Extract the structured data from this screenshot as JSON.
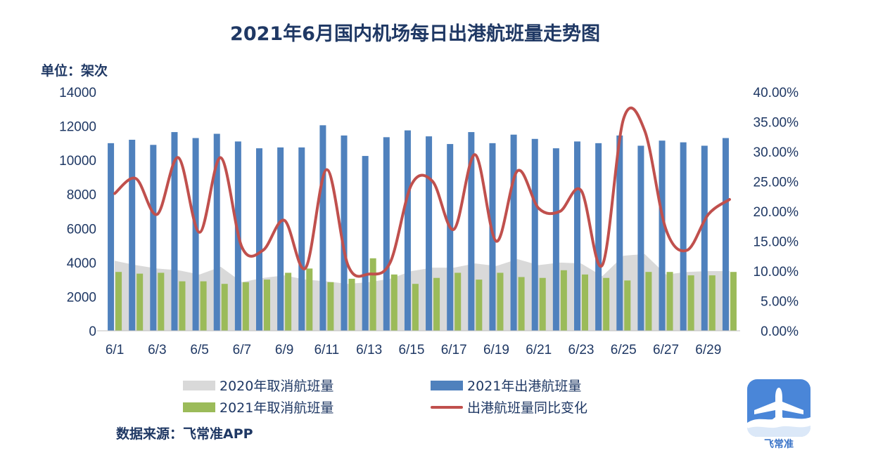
{
  "chart_data": {
    "type": "bar",
    "title": "2021年6月国内机场每日出港航班量走势图",
    "unit_label": "单位：架次",
    "categories": [
      "6/1",
      "6/2",
      "6/3",
      "6/4",
      "6/5",
      "6/6",
      "6/7",
      "6/8",
      "6/9",
      "6/10",
      "6/11",
      "6/12",
      "6/13",
      "6/14",
      "6/15",
      "6/16",
      "6/17",
      "6/18",
      "6/19",
      "6/20",
      "6/21",
      "6/22",
      "6/23",
      "6/24",
      "6/25",
      "6/26",
      "6/27",
      "6/28",
      "6/29",
      "6/30"
    ],
    "x_tick_labels": [
      "6/1",
      "6/3",
      "6/5",
      "6/7",
      "6/9",
      "6/11",
      "6/13",
      "6/15",
      "6/17",
      "6/19",
      "6/21",
      "6/23",
      "6/25",
      "6/27",
      "6/29"
    ],
    "ylim": [
      0,
      14000
    ],
    "y_ticks": [
      "0",
      "2000",
      "4000",
      "6000",
      "8000",
      "10000",
      "12000",
      "14000"
    ],
    "y2lim": [
      0,
      0.4
    ],
    "y2_ticks": [
      "0.00%",
      "5.00%",
      "10.00%",
      "15.00%",
      "20.00%",
      "25.00%",
      "30.00%",
      "35.00%",
      "40.00%"
    ],
    "legend_position": "bottom",
    "series": [
      {
        "name": "2020年取消航班量",
        "kind": "area",
        "axis": "left",
        "color": "#d9d9d9",
        "values": [
          4100,
          3850,
          3650,
          3550,
          3300,
          3750,
          2850,
          3100,
          3250,
          3000,
          2900,
          2750,
          2850,
          3050,
          3500,
          3700,
          3700,
          3950,
          3800,
          4200,
          3850,
          4000,
          3950,
          3200,
          4400,
          4500,
          3300,
          3450,
          3500,
          3500
        ]
      },
      {
        "name": "2021年出港航班量",
        "kind": "bar",
        "axis": "left",
        "color": "#4f81bd",
        "values": [
          11000,
          11200,
          10900,
          11650,
          11300,
          11550,
          11100,
          10700,
          10750,
          10750,
          12050,
          11450,
          10250,
          11350,
          11750,
          11400,
          10950,
          11650,
          11000,
          11500,
          11250,
          10700,
          11100,
          11000,
          11450,
          10850,
          11150,
          11050,
          10850,
          11300
        ]
      },
      {
        "name": "2021年取消航班量",
        "kind": "bar",
        "axis": "left",
        "color": "#9bbb59",
        "values": [
          3450,
          3350,
          3400,
          2900,
          2900,
          2750,
          2850,
          3000,
          3400,
          3650,
          2850,
          3050,
          4250,
          3300,
          2750,
          3100,
          3400,
          3000,
          3400,
          3150,
          3100,
          3550,
          3300,
          3100,
          2950,
          3450,
          3450,
          3250,
          3250,
          3450
        ]
      },
      {
        "name": "出港航班量同比变化",
        "kind": "line",
        "axis": "right",
        "color": "#c0504d",
        "values": [
          0.23,
          0.255,
          0.195,
          0.29,
          0.165,
          0.29,
          0.14,
          0.135,
          0.185,
          0.105,
          0.27,
          0.11,
          0.095,
          0.115,
          0.245,
          0.25,
          0.17,
          0.295,
          0.15,
          0.268,
          0.205,
          0.2,
          0.235,
          0.11,
          0.355,
          0.335,
          0.17,
          0.135,
          0.195,
          0.22
        ]
      }
    ]
  },
  "source": "数据来源：飞常准APP",
  "logo_text": "飞常准",
  "logo_icon": "airplane-icon"
}
